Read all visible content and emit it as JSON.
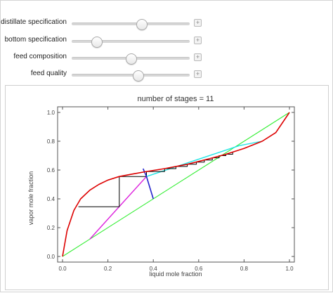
{
  "controls": [
    {
      "label": "distillate specification",
      "value": 0.59
    },
    {
      "label": "bottom specification",
      "value": 0.21
    },
    {
      "label": "feed composition",
      "value": 0.5
    },
    {
      "label": "feed quality",
      "value": 0.56
    }
  ],
  "plus_symbol": "+",
  "chart_data": {
    "type": "line",
    "title": "number of stages = 11",
    "xlabel": "liquid mole fraction",
    "ylabel": "vapor mole fraction",
    "xlim": [
      0,
      1
    ],
    "ylim": [
      0,
      1
    ],
    "xticks": [
      "0.0",
      "0.2",
      "0.4",
      "0.6",
      "0.8",
      "1.0"
    ],
    "yticks": [
      "0.0",
      "0.2",
      "0.4",
      "0.6",
      "0.8",
      "1.0"
    ],
    "colors": {
      "equilibrium": "#dd0000",
      "diagonal": "#33ee33",
      "rectifying": "#22e5e5",
      "stripping": "#dd22dd",
      "q_line": "#2222cc",
      "stages": "#000000"
    },
    "series": [
      {
        "key": "equilibrium",
        "points": [
          [
            0,
            0
          ],
          [
            0.02,
            0.18
          ],
          [
            0.05,
            0.32
          ],
          [
            0.08,
            0.4
          ],
          [
            0.12,
            0.46
          ],
          [
            0.16,
            0.5
          ],
          [
            0.2,
            0.53
          ],
          [
            0.25,
            0.555
          ],
          [
            0.3,
            0.57
          ],
          [
            0.37,
            0.59
          ],
          [
            0.45,
            0.61
          ],
          [
            0.55,
            0.64
          ],
          [
            0.65,
            0.68
          ],
          [
            0.72,
            0.71
          ],
          [
            0.8,
            0.75
          ],
          [
            0.88,
            0.8
          ],
          [
            0.94,
            0.86
          ],
          [
            1,
            1
          ]
        ]
      },
      {
        "key": "diagonal",
        "points": [
          [
            0,
            0
          ],
          [
            1,
            1
          ]
        ]
      },
      {
        "key": "rectifying",
        "points": [
          [
            0.37,
            0.555
          ],
          [
            0.78,
            0.77
          ],
          [
            0.88,
            0.8
          ]
        ]
      },
      {
        "key": "stripping",
        "points": [
          [
            0.12,
            0.12
          ],
          [
            0.37,
            0.555
          ]
        ]
      },
      {
        "key": "q_line",
        "points": [
          [
            0.4,
            0.4
          ],
          [
            0.37,
            0.555
          ],
          [
            0.355,
            0.61
          ]
        ]
      },
      {
        "key": "stages",
        "points": [
          [
            0.07,
            0.345
          ],
          [
            0.25,
            0.345
          ],
          [
            0.25,
            0.555
          ],
          [
            0.37,
            0.555
          ],
          [
            0.37,
            0.59
          ],
          [
            0.45,
            0.59
          ],
          [
            0.45,
            0.61
          ],
          [
            0.5,
            0.61
          ],
          [
            0.5,
            0.625
          ],
          [
            0.55,
            0.625
          ],
          [
            0.55,
            0.64
          ],
          [
            0.59,
            0.64
          ],
          [
            0.59,
            0.655
          ],
          [
            0.625,
            0.655
          ],
          [
            0.625,
            0.67
          ],
          [
            0.66,
            0.67
          ],
          [
            0.66,
            0.685
          ],
          [
            0.69,
            0.685
          ],
          [
            0.69,
            0.7
          ],
          [
            0.72,
            0.7
          ],
          [
            0.72,
            0.71
          ],
          [
            0.75,
            0.71
          ],
          [
            0.75,
            0.725
          ]
        ]
      }
    ]
  }
}
